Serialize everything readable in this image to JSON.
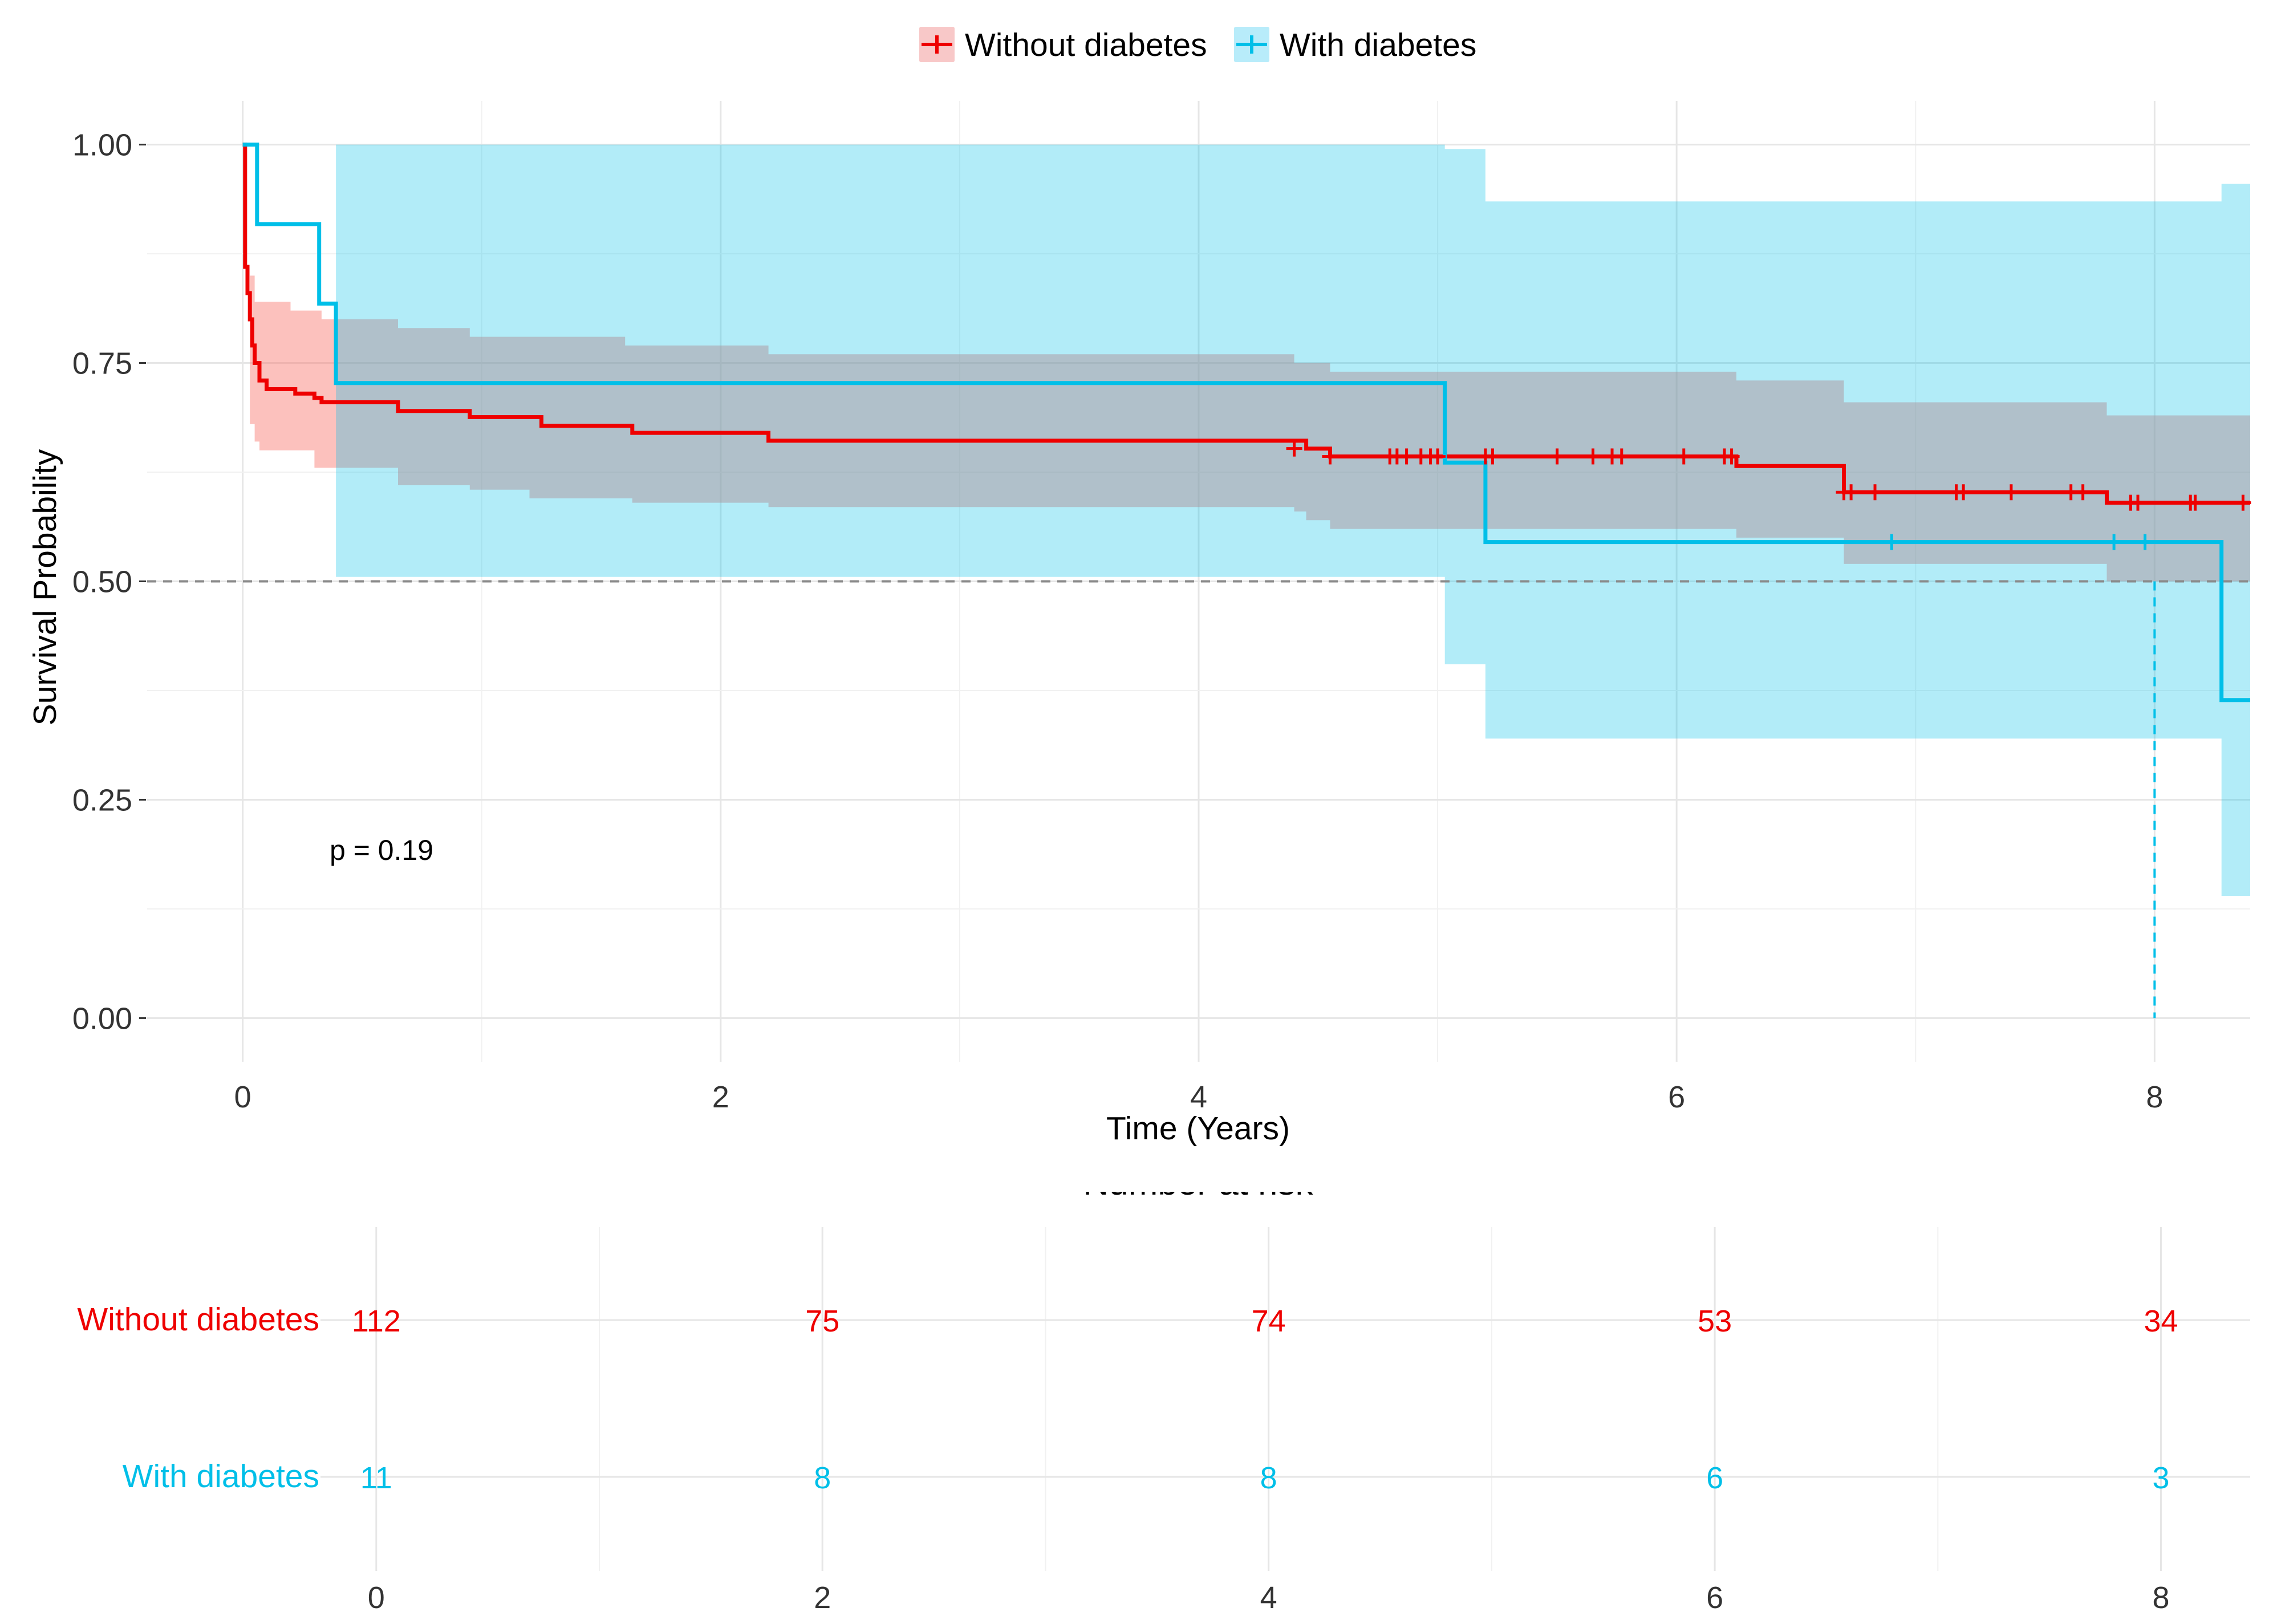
{
  "legend": {
    "entries": [
      {
        "name": "Without diabetes",
        "color": "#EE0000"
      },
      {
        "name": "With diabetes",
        "color": "#00BFE8"
      }
    ]
  },
  "annotation": "p = 0.19",
  "risk_table": {
    "title": "Number at risk",
    "times": [
      0,
      2,
      4,
      6,
      8
    ],
    "time_labels": [
      "0",
      "2",
      "4",
      "6",
      "8"
    ],
    "groups": [
      {
        "name": "Without diabetes",
        "color": "#EE0000",
        "values": [
          "112",
          "75",
          "74",
          "53",
          "34"
        ]
      },
      {
        "name": "With diabetes",
        "color": "#00BFE8",
        "values": [
          "11",
          "8",
          "8",
          "6",
          "3"
        ]
      }
    ]
  },
  "chart_data": {
    "type": "line",
    "subtype": "kaplan-meier step",
    "title": "",
    "xlabel": "Time (Years)",
    "ylabel": "Survival Probability",
    "xlim": [
      -0.4,
      8.4
    ],
    "ylim": [
      -0.05,
      1.05
    ],
    "x_ticks": [
      0,
      2,
      4,
      6,
      8
    ],
    "x_tick_labels": [
      "0",
      "2",
      "4",
      "6",
      "8"
    ],
    "y_ticks": [
      0,
      0.25,
      0.5,
      0.75,
      1
    ],
    "y_tick_labels": [
      "0.00",
      "0.25",
      "0.50",
      "0.75",
      "1.00"
    ],
    "median_reference_line": 0.5,
    "median_survival_marker": {
      "series": "With diabetes",
      "x": 8.0
    },
    "series": [
      {
        "name": "Without diabetes",
        "color": "#EE0000",
        "steps": [
          [
            0,
            1.0
          ],
          [
            0.01,
            0.86
          ],
          [
            0.02,
            0.83
          ],
          [
            0.03,
            0.8
          ],
          [
            0.04,
            0.77
          ],
          [
            0.05,
            0.75
          ],
          [
            0.07,
            0.73
          ],
          [
            0.1,
            0.72
          ],
          [
            0.2,
            0.72
          ],
          [
            0.22,
            0.715
          ],
          [
            0.3,
            0.71
          ],
          [
            0.33,
            0.705
          ],
          [
            0.6,
            0.705
          ],
          [
            0.65,
            0.695
          ],
          [
            0.9,
            0.695
          ],
          [
            0.95,
            0.688
          ],
          [
            1.2,
            0.688
          ],
          [
            1.25,
            0.678
          ],
          [
            1.6,
            0.678
          ],
          [
            1.63,
            0.67
          ],
          [
            2.1,
            0.67
          ],
          [
            2.2,
            0.661
          ],
          [
            4.4,
            0.661
          ],
          [
            4.45,
            0.652
          ],
          [
            4.55,
            0.643
          ],
          [
            5.2,
            0.643
          ],
          [
            6.2,
            0.643
          ],
          [
            6.25,
            0.632
          ],
          [
            6.6,
            0.632
          ],
          [
            6.7,
            0.602
          ],
          [
            7.8,
            0.602
          ],
          [
            7.8,
            0.59
          ],
          [
            8.4,
            0.59
          ]
        ],
        "ci_lower": [
          [
            0,
            1.0
          ],
          [
            0.03,
            0.68
          ],
          [
            0.05,
            0.66
          ],
          [
            0.07,
            0.65
          ],
          [
            0.3,
            0.63
          ],
          [
            0.65,
            0.61
          ],
          [
            0.95,
            0.605
          ],
          [
            1.2,
            0.595
          ],
          [
            1.63,
            0.59
          ],
          [
            2.2,
            0.585
          ],
          [
            4.4,
            0.58
          ],
          [
            4.45,
            0.57
          ],
          [
            4.55,
            0.56
          ],
          [
            6.25,
            0.55
          ],
          [
            6.7,
            0.52
          ],
          [
            7.8,
            0.5
          ],
          [
            8.4,
            0.5
          ]
        ],
        "ci_upper": [
          [
            0,
            1.0
          ],
          [
            0.03,
            0.85
          ],
          [
            0.05,
            0.82
          ],
          [
            0.2,
            0.81
          ],
          [
            0.33,
            0.8
          ],
          [
            0.65,
            0.79
          ],
          [
            0.95,
            0.78
          ],
          [
            1.6,
            0.77
          ],
          [
            2.2,
            0.76
          ],
          [
            4.4,
            0.75
          ],
          [
            4.55,
            0.74
          ],
          [
            6.2,
            0.74
          ],
          [
            6.25,
            0.73
          ],
          [
            6.7,
            0.705
          ],
          [
            7.8,
            0.69
          ],
          [
            8.4,
            0.69
          ]
        ],
        "censor_times": [
          4.4,
          4.55,
          4.8,
          4.83,
          4.87,
          4.93,
          4.97,
          5.0,
          5.2,
          5.23,
          5.5,
          5.65,
          5.73,
          5.77,
          6.03,
          6.2,
          6.23,
          6.7,
          6.73,
          6.83,
          7.17,
          7.2,
          7.4,
          7.65,
          7.7,
          7.9,
          7.93,
          8.15,
          8.17,
          8.37
        ],
        "censor_values": [
          0.652,
          0.643,
          0.643,
          0.643,
          0.643,
          0.643,
          0.643,
          0.643,
          0.643,
          0.643,
          0.643,
          0.643,
          0.643,
          0.643,
          0.643,
          0.643,
          0.643,
          0.602,
          0.602,
          0.602,
          0.602,
          0.602,
          0.602,
          0.602,
          0.602,
          0.59,
          0.59,
          0.59,
          0.59,
          0.59
        ]
      },
      {
        "name": "With diabetes",
        "color": "#00BFE8",
        "steps": [
          [
            0,
            1.0
          ],
          [
            0.06,
            0.909
          ],
          [
            0.32,
            0.818
          ],
          [
            0.39,
            0.727
          ],
          [
            5.03,
            0.636
          ],
          [
            5.2,
            0.545
          ],
          [
            8.28,
            0.364
          ],
          [
            8.4,
            0.364
          ]
        ],
        "ci_lower": [
          [
            0,
            1.0
          ],
          [
            0.39,
            0.505
          ],
          [
            5.03,
            0.405
          ],
          [
            5.2,
            0.32
          ],
          [
            8.28,
            0.14
          ],
          [
            8.4,
            0.14
          ]
        ],
        "ci_upper": [
          [
            0,
            1.0
          ],
          [
            5.03,
            0.995
          ],
          [
            5.2,
            0.935
          ],
          [
            8.28,
            0.955
          ],
          [
            8.4,
            0.955
          ]
        ],
        "censor_times": [
          6.9,
          7.83,
          7.96
        ],
        "censor_values": [
          0.545,
          0.545,
          0.545
        ]
      }
    ]
  }
}
